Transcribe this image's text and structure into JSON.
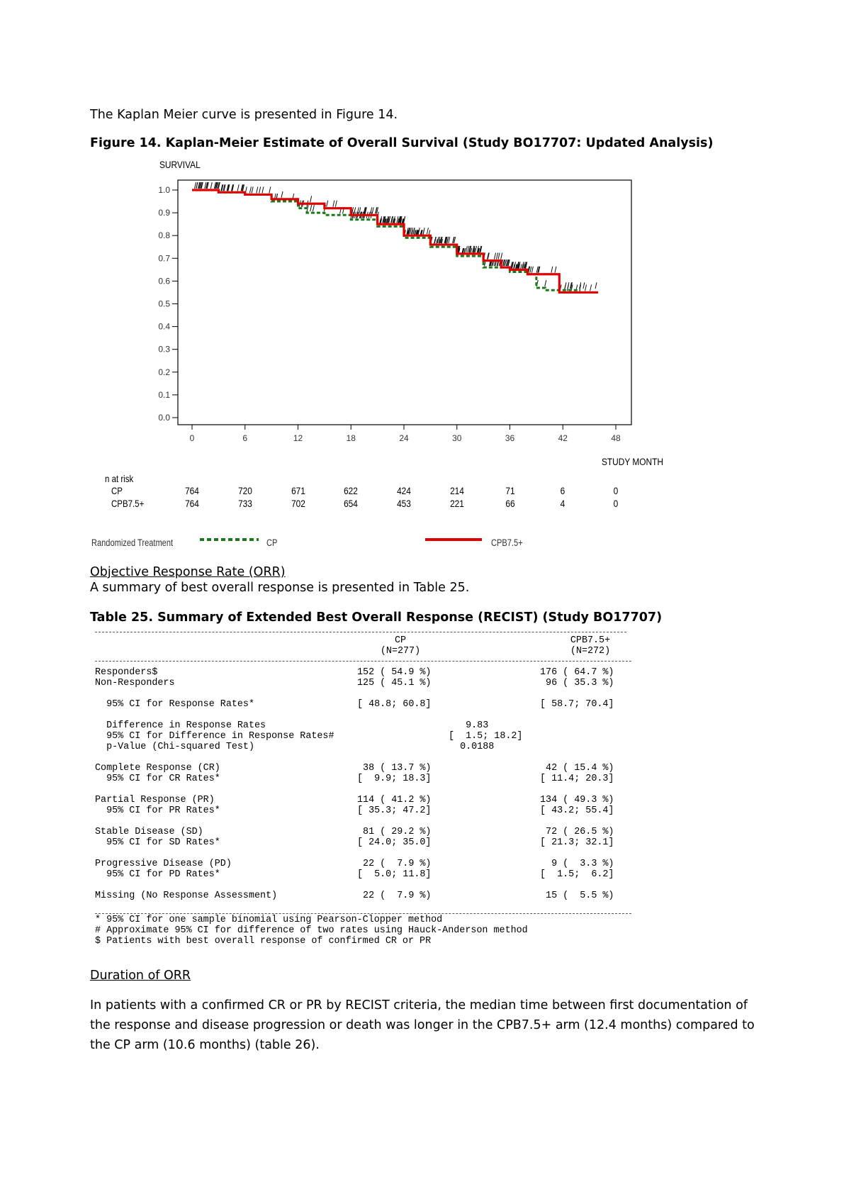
{
  "intro_text": "The Kaplan Meier curve is presented in Figure 14.",
  "figure_title": "Figure 14. Kaplan-Meier Estimate of Overall Survival (Study BO17707: Updated Analysis)",
  "chart_data": {
    "type": "line",
    "ylabel": "SURVIVAL",
    "xlabel": "STUDY MONTH",
    "xlim": [
      0,
      48
    ],
    "ylim": [
      0.0,
      1.0
    ],
    "x_ticks": [
      "0",
      "6",
      "12",
      "18",
      "24",
      "30",
      "36",
      "42",
      "48"
    ],
    "y_ticks": [
      "1.0",
      "0.9",
      "0.8",
      "0.7",
      "0.6",
      "0.5",
      "0.4",
      "0.3",
      "0.2",
      "0.1",
      "0.0"
    ],
    "legend_title": "Randomized Treatment",
    "series": [
      {
        "name": "CP",
        "color": "#1a7a1a",
        "style": "dashed",
        "x": [
          0,
          3,
          6,
          9,
          12,
          13,
          15,
          18,
          21,
          24,
          27,
          30,
          33,
          36,
          38,
          39,
          40,
          42,
          44
        ],
        "y": [
          1.0,
          0.99,
          0.98,
          0.95,
          0.92,
          0.9,
          0.89,
          0.87,
          0.84,
          0.79,
          0.75,
          0.71,
          0.66,
          0.64,
          0.63,
          0.57,
          0.56,
          0.56,
          0.56
        ]
      },
      {
        "name": "CPB7.5+",
        "color": "#e00000",
        "style": "solid",
        "x": [
          0,
          3,
          6,
          9,
          12,
          15,
          18,
          21,
          24,
          27,
          30,
          33,
          35,
          36,
          38,
          41.5,
          41.6,
          46
        ],
        "y": [
          1.0,
          0.99,
          0.98,
          0.96,
          0.94,
          0.92,
          0.89,
          0.85,
          0.8,
          0.76,
          0.72,
          0.69,
          0.66,
          0.65,
          0.63,
          0.63,
          0.55,
          0.55
        ]
      }
    ],
    "risk_table": {
      "label": "n at risk",
      "times": [
        0,
        6,
        12,
        18,
        24,
        30,
        36,
        42,
        48
      ],
      "rows": [
        {
          "name": "CP",
          "values": [
            "764",
            "720",
            "671",
            "622",
            "424",
            "214",
            "71",
            "6",
            "0"
          ]
        },
        {
          "name": "CPB7.5+",
          "values": [
            "764",
            "733",
            "702",
            "654",
            "453",
            "221",
            "66",
            "4",
            "0"
          ]
        }
      ]
    }
  },
  "orr_heading": "Objective Response Rate (ORR)",
  "orr_text": "A summary of best overall response is presented in Table 25.",
  "table_title": "Table 25. Summary of Extended Best Overall Response (RECIST) (Study BO17707)",
  "table": {
    "col1_header": "CP",
    "col1_n": "(N=277)",
    "col2_header": "CPB7.5+",
    "col2_n": "(N=272)",
    "rows": [
      {
        "label": "Responders$",
        "c1": "152 ( 54.9 %)",
        "c2": "176 ( 64.7 %)"
      },
      {
        "label": "Non-Responders",
        "c1": "125 ( 45.1 %)",
        "c2": " 96 ( 35.3 %)"
      },
      {
        "label": "  95% CI for Response Rates*",
        "c1": "[ 48.8; 60.8]",
        "c2": "[ 58.7; 70.4]"
      },
      {
        "label": "  Difference in Response Rates",
        "mid": "   9.83"
      },
      {
        "label": "  95% CI for Difference in Response Rates#",
        "mid": "[  1.5; 18.2]"
      },
      {
        "label": "  p-Value (Chi-squared Test)",
        "mid": "  0.0188"
      },
      {
        "label": "Complete Response (CR)",
        "c1": " 38 ( 13.7 %)",
        "c2": " 42 ( 15.4 %)"
      },
      {
        "label": "  95% CI for CR Rates*",
        "c1": "[  9.9; 18.3]",
        "c2": "[ 11.4; 20.3]"
      },
      {
        "label": "Partial Response (PR)",
        "c1": "114 ( 41.2 %)",
        "c2": "134 ( 49.3 %)"
      },
      {
        "label": "  95% CI for PR Rates*",
        "c1": "[ 35.3; 47.2]",
        "c2": "[ 43.2; 55.4]"
      },
      {
        "label": "Stable Disease (SD)",
        "c1": " 81 ( 29.2 %)",
        "c2": " 72 ( 26.5 %)"
      },
      {
        "label": "  95% CI for SD Rates*",
        "c1": "[ 24.0; 35.0]",
        "c2": "[ 21.3; 32.1]"
      },
      {
        "label": "Progressive Disease (PD)",
        "c1": " 22 (  7.9 %)",
        "c2": "  9 (  3.3 %)"
      },
      {
        "label": "  95% CI for PD Rates*",
        "c1": "[  5.0; 11.8]",
        "c2": "[  1.5;  6.2]"
      },
      {
        "label": "Missing (No Response Assessment)",
        "c1": " 22 (  7.9 %)",
        "c2": " 15 (  5.5 %)"
      }
    ],
    "footnotes": [
      "* 95% CI for one sample binomial using Pearson-Clopper method",
      "# Approximate 95% CI for difference of two rates using Hauck-Anderson method",
      "$ Patients with best overall response of confirmed CR or PR"
    ]
  },
  "duration_heading": "Duration of ORR",
  "duration_text": "In patients with a confirmed CR or PR by RECIST criteria, the median time between first documentation of the response and disease progression or death was longer in the CPB7.5+ arm (12.4 months) compared to the CP arm (10.6 months) (table 26)."
}
